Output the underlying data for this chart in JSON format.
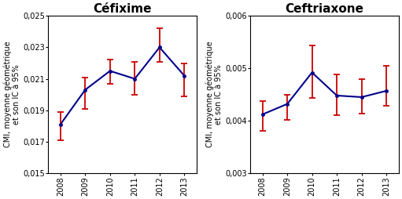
{
  "chart1": {
    "title": "Céfixime",
    "years": [
      2008,
      2009,
      2010,
      2011,
      2012,
      2013
    ],
    "values": [
      0.0181,
      0.0203,
      0.0215,
      0.021,
      0.023,
      0.0212
    ],
    "err_low": [
      0.001,
      0.0012,
      0.0008,
      0.001,
      0.0009,
      0.0013
    ],
    "err_high": [
      0.0008,
      0.0008,
      0.0007,
      0.0011,
      0.0012,
      0.0008
    ],
    "ylim": [
      0.015,
      0.025
    ],
    "yticks": [
      0.015,
      0.017,
      0.019,
      0.021,
      0.023,
      0.025
    ],
    "ytick_labels": [
      "0,015",
      "0,017",
      "0,019",
      "0,021",
      "0,023",
      "0,025"
    ]
  },
  "chart2": {
    "title": "Ceftriaxone",
    "years": [
      2008,
      2009,
      2010,
      2011,
      2012,
      2013
    ],
    "values": [
      0.00412,
      0.00432,
      0.00492,
      0.00448,
      0.00445,
      0.00457
    ],
    "err_low": [
      0.00032,
      0.0003,
      0.00048,
      0.00038,
      0.00032,
      0.00028
    ],
    "err_high": [
      0.00025,
      0.00018,
      0.00052,
      0.0004,
      0.00035,
      0.00048
    ],
    "ylim": [
      0.003,
      0.006
    ],
    "yticks": [
      0.003,
      0.004,
      0.005,
      0.006
    ],
    "ytick_labels": [
      "0,003",
      "0,004",
      "0,005",
      "0,006"
    ]
  },
  "ylabel": "CMI, moyenne géométrique\net son IC à 95%",
  "line_color": "#00008B",
  "err_color": "#CC0000",
  "bg_color": "#ffffff",
  "title_fontsize": 11,
  "label_fontsize": 7,
  "tick_fontsize": 7
}
